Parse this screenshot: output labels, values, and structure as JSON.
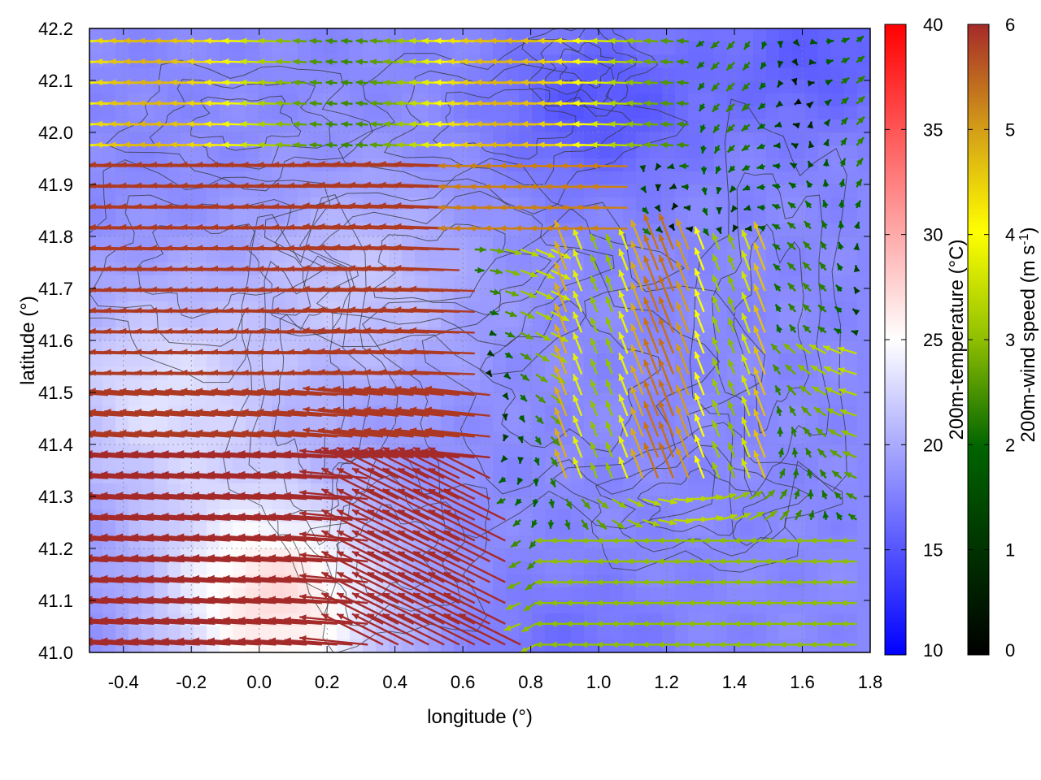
{
  "chart_data": {
    "type": "heatmap",
    "description_axes": {
      "xlabel": "longitude (°)",
      "ylabel": "latitude (°)",
      "xlim": [
        -0.5,
        1.8
      ],
      "ylim": [
        41.0,
        42.2
      ],
      "xticks": [
        "-0.4",
        "-0.2",
        "0.0",
        "0.2",
        "0.4",
        "0.6",
        "0.8",
        "1.0",
        "1.2",
        "1.4",
        "1.6",
        "1.8"
      ],
      "xtick_values": [
        -0.4,
        -0.2,
        0.0,
        0.2,
        0.4,
        0.6,
        0.8,
        1.0,
        1.2,
        1.4,
        1.6,
        1.8
      ],
      "yticks": [
        "41.0",
        "41.1",
        "41.2",
        "41.3",
        "41.4",
        "41.5",
        "41.6",
        "41.7",
        "41.8",
        "41.9",
        "42.0",
        "42.1",
        "42.2"
      ],
      "ytick_values": [
        41.0,
        41.1,
        41.2,
        41.3,
        41.4,
        41.5,
        41.6,
        41.7,
        41.8,
        41.9,
        42.0,
        42.1,
        42.2
      ],
      "grid": true
    },
    "temperature_colorbar": {
      "label": "200m-temperature (°C)",
      "range": [
        10,
        40
      ],
      "ticks": [
        "10",
        "15",
        "20",
        "25",
        "30",
        "35",
        "40"
      ],
      "tick_values": [
        10,
        15,
        20,
        25,
        30,
        35,
        40
      ],
      "colors": [
        "#0000ff",
        "#ffffff",
        "#ff0000"
      ]
    },
    "wind_colorbar": {
      "label_main": "200m-wind speed (m s",
      "label_sup": "-1",
      "label_end": ")",
      "range": [
        0,
        6
      ],
      "ticks": [
        "0",
        "1",
        "2",
        "3",
        "4",
        "5",
        "6"
      ],
      "tick_values": [
        0,
        1,
        2,
        3,
        4,
        5,
        6
      ],
      "colors": [
        "#000000",
        "#006400",
        "#8fbf00",
        "#ffff00",
        "#d4a017",
        "#c06010",
        "#a52a2a"
      ]
    },
    "background_temperature": {
      "base_c": 18,
      "warm_spots": [
        {
          "lon": 0.05,
          "lat": 41.1,
          "temp_c": 27
        },
        {
          "lon": -0.3,
          "lat": 41.5,
          "temp_c": 23
        },
        {
          "lon": 0.3,
          "lat": 41.7,
          "temp_c": 21.5
        }
      ],
      "cool_spots": [
        {
          "lon": 1.0,
          "lat": 42.05,
          "temp_c": 15
        },
        {
          "lon": 1.65,
          "lat": 42.15,
          "temp_c": 15.5
        },
        {
          "lon": 0.9,
          "lat": 41.0,
          "temp_c": 16.5
        }
      ]
    },
    "wind_field": {
      "units": "m s-1",
      "strong_westward_region": {
        "lon_max": 0.6,
        "speed": 6,
        "direction": "west"
      },
      "northern_jet": {
        "lat": 41.88,
        "lon_max": 1.1,
        "speed": 4.5,
        "direction": "west"
      },
      "convergence_zone": {
        "lon": [
          0.9,
          1.5
        ],
        "lat": [
          41.3,
          41.8
        ],
        "speed": 5,
        "direction": "north-northwest"
      },
      "southeast_easterlies": {
        "lon_min": 0.85,
        "lat_max": 41.25,
        "speed": 2,
        "direction": "west"
      },
      "northeast_light": {
        "lon_min": 1.3,
        "lat_min": 41.6,
        "speed": 1,
        "direction": "variable"
      }
    }
  }
}
